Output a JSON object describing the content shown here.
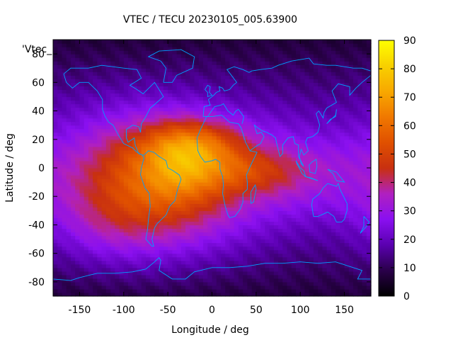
{
  "chart_data": {
    "type": "heatmap",
    "title": "VTEC / TECU 20230105_005.63900",
    "xlabel": "Longitude / deg",
    "ylabel": "Latitude / deg",
    "xlim": [
      -180,
      180
    ],
    "ylim": [
      -90,
      90
    ],
    "xticks": [
      "-150",
      "-100",
      "-50",
      "0",
      "50",
      "100",
      "150"
    ],
    "yticks": [
      "80",
      "60",
      "40",
      "20",
      "0",
      "-20",
      "-40",
      "-60",
      "-80"
    ],
    "colorbar": {
      "range": [
        0,
        90
      ],
      "ticks": [
        "0",
        "10",
        "20",
        "30",
        "40",
        "50",
        "60",
        "70",
        "80",
        "90"
      ]
    },
    "legend": {
      "label": "'Vtec_",
      "position": "top-left"
    },
    "grid": false,
    "colormap": [
      "#000000",
      "#2a004a",
      "#5a00b0",
      "#8a10f0",
      "#b020c0",
      "#c83010",
      "#e05000",
      "#f07800",
      "#f8a800",
      "#f8d000",
      "#ffff00"
    ],
    "blobs": [
      {
        "lon": -60,
        "lat": -10,
        "slon": 70,
        "slat": 32,
        "amp": 38
      },
      {
        "lon": -20,
        "lat": 18,
        "slon": 40,
        "slat": 12,
        "amp": 22
      },
      {
        "lon": -35,
        "lat": 0,
        "slon": 30,
        "slat": 15,
        "amp": 12
      },
      {
        "lon": 40,
        "lat": -2,
        "slon": 45,
        "slat": 12,
        "amp": 16
      },
      {
        "lon": 110,
        "lat": -5,
        "slon": 50,
        "slat": 22,
        "amp": 10
      },
      {
        "lon": -120,
        "lat": -40,
        "slon": 40,
        "slat": 20,
        "amp": 6
      }
    ],
    "background_level": 20
  }
}
